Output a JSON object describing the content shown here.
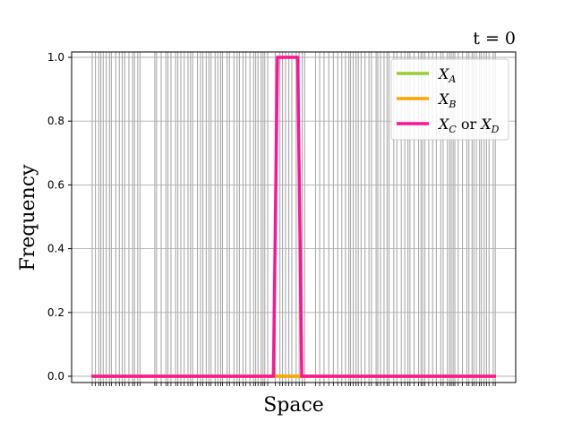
{
  "chart_data": {
    "type": "line",
    "title": "t = 0",
    "xlabel": "Space",
    "ylabel": "Frequency",
    "xlim": [
      0,
      1
    ],
    "ylim": [
      0,
      1
    ],
    "y_ticks": [
      "0.0",
      "0.2",
      "0.4",
      "0.6",
      "0.8",
      "1.0"
    ],
    "y_tick_values": [
      0.0,
      0.2,
      0.4,
      0.6,
      0.8,
      1.0
    ],
    "grid": "horizontal",
    "legend_position": "upper right",
    "series": [
      {
        "name": "X_A",
        "color": "#9acd32",
        "x": [
          0,
          1
        ],
        "y": [
          0,
          0
        ]
      },
      {
        "name": "X_B",
        "color": "#ffa500",
        "x": [
          0,
          1
        ],
        "y": [
          0,
          0
        ]
      },
      {
        "name": "X_C or X_D",
        "color": "#ff1493",
        "x": [
          0.0,
          0.45,
          0.46,
          0.51,
          0.52,
          1.0
        ],
        "y": [
          0.0,
          0.0,
          1.0,
          1.0,
          0.0,
          0.0
        ]
      }
    ],
    "rug_lines_color": "#aaaaaa",
    "legend": {
      "a": {
        "main": "X",
        "sub": "A"
      },
      "b": {
        "main": "X",
        "sub": "B"
      },
      "c": {
        "main1": "X",
        "sub1": "C",
        "mid": " or ",
        "main2": "X",
        "sub2": "D"
      }
    }
  }
}
